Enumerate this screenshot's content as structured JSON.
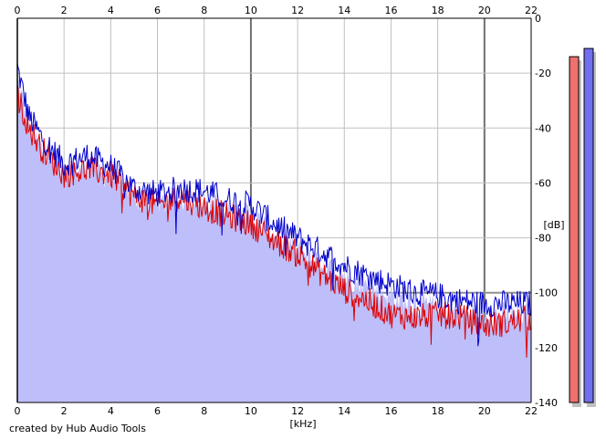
{
  "chart_data": {
    "type": "area",
    "xlabel": "[kHz]",
    "ylabel": "[dB]",
    "xlim": [
      0,
      22
    ],
    "ylim": [
      -140,
      0
    ],
    "x_ticks": [
      0,
      2,
      4,
      6,
      8,
      10,
      12,
      14,
      16,
      18,
      20,
      22
    ],
    "y_ticks": [
      0,
      -20,
      -40,
      -60,
      -80,
      -100,
      -120,
      -140
    ],
    "x_tick_labels": [
      "0",
      "2",
      "4",
      "6",
      "8",
      "10",
      "12",
      "14",
      "16",
      "18",
      "20",
      "22"
    ],
    "y_tick_labels": [
      "0",
      "-20",
      "-40",
      "-60",
      "-80",
      "-100",
      "-120",
      "-140"
    ],
    "grid": true,
    "series": [
      {
        "color": "#0000cc",
        "x": [
          0,
          0.5,
          1,
          2,
          3,
          4,
          5,
          6,
          7,
          8,
          9,
          10,
          11,
          12,
          13,
          14,
          15,
          16,
          17,
          18,
          19,
          20,
          21,
          22
        ],
        "values": [
          -18,
          -36,
          -43,
          -53,
          -50,
          -54,
          -62,
          -64,
          -62,
          -63,
          -66,
          -68,
          -75,
          -80,
          -85,
          -90,
          -94,
          -97,
          -100,
          -101,
          -103,
          -104,
          -104,
          -104
        ]
      },
      {
        "color": "#dd0000",
        "x": [
          0,
          0.5,
          1,
          2,
          3,
          4,
          5,
          6,
          7,
          8,
          9,
          10,
          11,
          12,
          13,
          14,
          15,
          16,
          17,
          18,
          19,
          20,
          21,
          22
        ],
        "values": [
          -28,
          -40,
          -47,
          -57,
          -55,
          -57,
          -65,
          -68,
          -65,
          -69,
          -72,
          -75,
          -81,
          -86,
          -93,
          -99,
          -103,
          -108,
          -109,
          -108,
          -109,
          -112,
          -111,
          -109
        ]
      }
    ],
    "level_meters": [
      {
        "color": "#ee7070",
        "level_db": -14
      },
      {
        "color": "#7070ee",
        "level_db": -11
      }
    ]
  },
  "credit": "created by Hub Audio Tools",
  "colors": {
    "fill": "#bebefa",
    "grid": "#c0c0c0",
    "axis": "#000000"
  }
}
